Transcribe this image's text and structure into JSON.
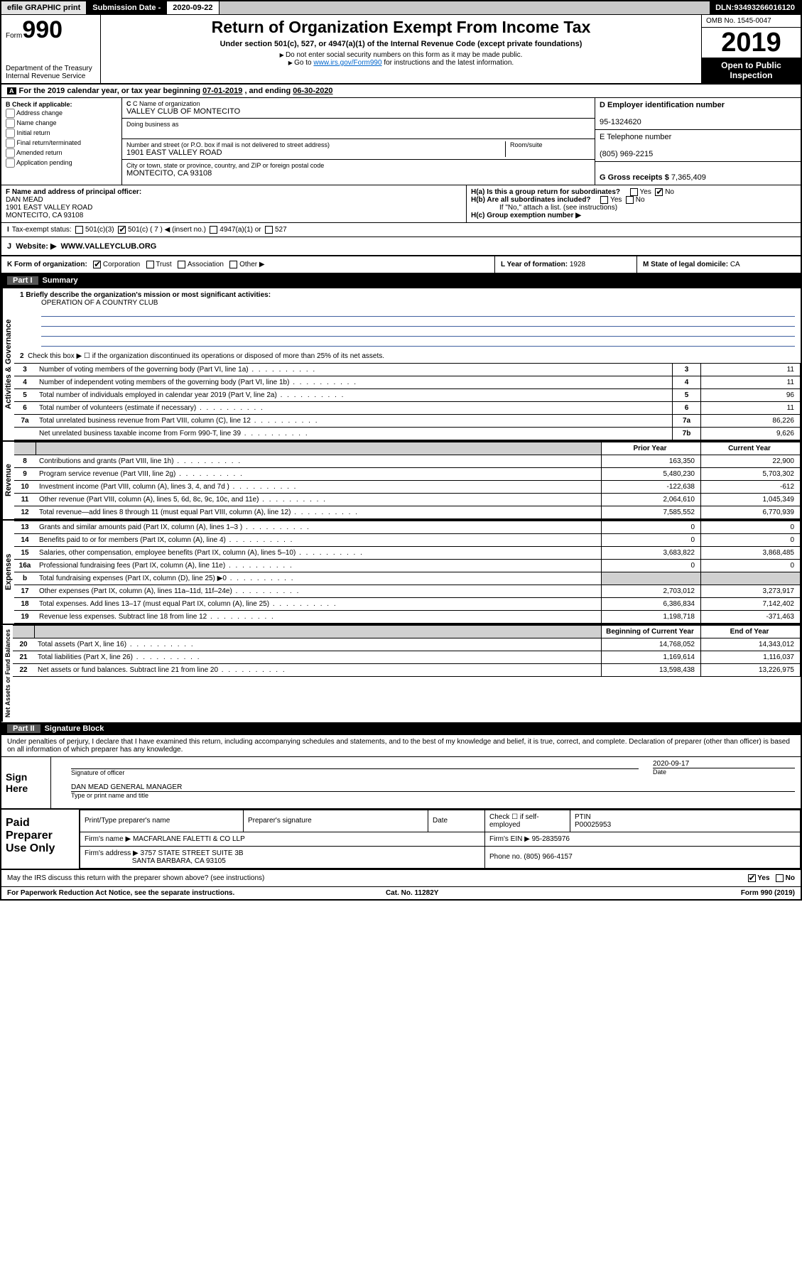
{
  "topbar": {
    "efile": "efile GRAPHIC print",
    "submission_label": "Submission Date - ",
    "submission_date": "2020-09-22",
    "dln_label": "DLN: ",
    "dln": "93493266016120"
  },
  "header": {
    "form_word": "Form",
    "form_num": "990",
    "dept": "Department of the Treasury\nInternal Revenue Service",
    "title": "Return of Organization Exempt From Income Tax",
    "subtitle": "Under section 501(c), 527, or 4947(a)(1) of the Internal Revenue Code (except private foundations)",
    "instr1": "Do not enter social security numbers on this form as it may be made public.",
    "instr2_pre": "Go to ",
    "instr2_link": "www.irs.gov/Form990",
    "instr2_post": " for instructions and the latest information.",
    "omb": "OMB No. 1545-0047",
    "year": "2019",
    "open_pub": "Open to Public Inspection"
  },
  "period": {
    "text_a": "For the 2019 calendar year, or tax year beginning ",
    "begin": "07-01-2019",
    "mid": " , and ending ",
    "end": "06-30-2020"
  },
  "ident": {
    "b_label": "B Check if applicable:",
    "b_opts": [
      "Address change",
      "Name change",
      "Initial return",
      "Final return/terminated",
      "Amended return",
      "Application pending"
    ],
    "c_label": "C Name of organization",
    "c_name": "VALLEY CLUB OF MONTECITO",
    "dba_label": "Doing business as",
    "addr_hint": "Number and street (or P.O. box if mail is not delivered to street address)",
    "room_hint": "Room/suite",
    "addr": "1901 EAST VALLEY ROAD",
    "city_hint": "City or town, state or province, country, and ZIP or foreign postal code",
    "city": "MONTECITO, CA  93108",
    "d_label": "D Employer identification number",
    "d_val": "95-1324620",
    "e_label": "E Telephone number",
    "e_val": "(805) 969-2215",
    "g_label": "G Gross receipts $ ",
    "g_val": "7,365,409"
  },
  "f": {
    "label": "F Name and address of principal officer:",
    "name": "DAN MEAD",
    "addr1": "1901 EAST VALLEY ROAD",
    "addr2": "MONTECITO, CA  93108"
  },
  "h": {
    "a": "H(a)  Is this a group return for subordinates?",
    "b": "H(b)  Are all subordinates included?",
    "b_note": "If \"No,\" attach a list. (see instructions)",
    "c": "H(c)  Group exemption number ▶",
    "yes": "Yes",
    "no": "No"
  },
  "i": {
    "label": "Tax-exempt status:",
    "o1": "501(c)(3)",
    "o2": "501(c) ( 7 ) ◀ (insert no.)",
    "o3": "4947(a)(1) or",
    "o4": "527"
  },
  "j": {
    "label": "Website: ▶",
    "val": "WWW.VALLEYCLUB.ORG"
  },
  "k": {
    "label": "K Form of organization:",
    "opts": [
      "Corporation",
      "Trust",
      "Association",
      "Other ▶"
    ]
  },
  "l": {
    "label": "L Year of formation: ",
    "val": "1928"
  },
  "m": {
    "label": "M State of legal domicile: ",
    "val": "CA"
  },
  "part1": {
    "no": "Part I",
    "title": "Summary"
  },
  "mission": {
    "q": "1  Briefly describe the organization's mission or most significant activities:",
    "a": "OPERATION OF A COUNTRY CLUB"
  },
  "gov": {
    "side": "Activities & Governance",
    "l2": "Check this box ▶ ☐  if the organization discontinued its operations or disposed of more than 25% of its net assets.",
    "rows": [
      {
        "n": "3",
        "d": "Number of voting members of the governing body (Part VI, line 1a)",
        "b": "3",
        "v": "11"
      },
      {
        "n": "4",
        "d": "Number of independent voting members of the governing body (Part VI, line 1b)",
        "b": "4",
        "v": "11"
      },
      {
        "n": "5",
        "d": "Total number of individuals employed in calendar year 2019 (Part V, line 2a)",
        "b": "5",
        "v": "96"
      },
      {
        "n": "6",
        "d": "Total number of volunteers (estimate if necessary)",
        "b": "6",
        "v": "11"
      },
      {
        "n": "7a",
        "d": "Total unrelated business revenue from Part VIII, column (C), line 12",
        "b": "7a",
        "v": "86,226"
      },
      {
        "n": "",
        "d": "Net unrelated business taxable income from Form 990-T, line 39",
        "b": "7b",
        "v": "9,626"
      }
    ]
  },
  "rev": {
    "side": "Revenue",
    "hdr_prior": "Prior Year",
    "hdr_curr": "Current Year",
    "rows": [
      {
        "n": "8",
        "d": "Contributions and grants (Part VIII, line 1h)",
        "p": "163,350",
        "c": "22,900"
      },
      {
        "n": "9",
        "d": "Program service revenue (Part VIII, line 2g)",
        "p": "5,480,230",
        "c": "5,703,302"
      },
      {
        "n": "10",
        "d": "Investment income (Part VIII, column (A), lines 3, 4, and 7d )",
        "p": "-122,638",
        "c": "-612"
      },
      {
        "n": "11",
        "d": "Other revenue (Part VIII, column (A), lines 5, 6d, 8c, 9c, 10c, and 11e)",
        "p": "2,064,610",
        "c": "1,045,349"
      },
      {
        "n": "12",
        "d": "Total revenue—add lines 8 through 11 (must equal Part VIII, column (A), line 12)",
        "p": "7,585,552",
        "c": "6,770,939"
      }
    ]
  },
  "exp": {
    "side": "Expenses",
    "rows": [
      {
        "n": "13",
        "d": "Grants and similar amounts paid (Part IX, column (A), lines 1–3 )",
        "p": "0",
        "c": "0"
      },
      {
        "n": "14",
        "d": "Benefits paid to or for members (Part IX, column (A), line 4)",
        "p": "0",
        "c": "0"
      },
      {
        "n": "15",
        "d": "Salaries, other compensation, employee benefits (Part IX, column (A), lines 5–10)",
        "p": "3,683,822",
        "c": "3,868,485"
      },
      {
        "n": "16a",
        "d": "Professional fundraising fees (Part IX, column (A), line 11e)",
        "p": "0",
        "c": "0"
      },
      {
        "n": "b",
        "d": "Total fundraising expenses (Part IX, column (D), line 25) ▶0",
        "p": "",
        "c": "",
        "shaded": true
      },
      {
        "n": "17",
        "d": "Other expenses (Part IX, column (A), lines 11a–11d, 11f–24e)",
        "p": "2,703,012",
        "c": "3,273,917"
      },
      {
        "n": "18",
        "d": "Total expenses. Add lines 13–17 (must equal Part IX, column (A), line 25)",
        "p": "6,386,834",
        "c": "7,142,402"
      },
      {
        "n": "19",
        "d": "Revenue less expenses. Subtract line 18 from line 12",
        "p": "1,198,718",
        "c": "-371,463"
      }
    ]
  },
  "net": {
    "side": "Net Assets or Fund Balances",
    "hdr_begin": "Beginning of Current Year",
    "hdr_end": "End of Year",
    "rows": [
      {
        "n": "20",
        "d": "Total assets (Part X, line 16)",
        "p": "14,768,052",
        "c": "14,343,012"
      },
      {
        "n": "21",
        "d": "Total liabilities (Part X, line 26)",
        "p": "1,169,614",
        "c": "1,116,037"
      },
      {
        "n": "22",
        "d": "Net assets or fund balances. Subtract line 21 from line 20",
        "p": "13,598,438",
        "c": "13,226,975"
      }
    ]
  },
  "part2": {
    "no": "Part II",
    "title": "Signature Block"
  },
  "perjury": "Under penalties of perjury, I declare that I have examined this return, including accompanying schedules and statements, and to the best of my knowledge and belief, it is true, correct, and complete. Declaration of preparer (other than officer) is based on all information of which preparer has any knowledge.",
  "sign": {
    "here": "Sign Here",
    "sig_officer": "Signature of officer",
    "date_label": "Date",
    "date_val": "2020-09-17",
    "name": "DAN MEAD GENERAL MANAGER",
    "name_label": "Type or print name and title"
  },
  "paid": {
    "label": "Paid Preparer Use Only",
    "h1": "Print/Type preparer's name",
    "h2": "Preparer's signature",
    "h3": "Date",
    "h4_a": "Check ☐ if self-employed",
    "h5": "PTIN",
    "ptin": "P00025953",
    "firm_name_l": "Firm's name    ▶",
    "firm_name": "MACFARLANE FALETTI & CO LLP",
    "firm_ein_l": "Firm's EIN ▶ ",
    "firm_ein": "95-2835976",
    "firm_addr_l": "Firm's address ▶",
    "firm_addr1": "3757 STATE STREET SUITE 3B",
    "firm_addr2": "SANTA BARBARA, CA  93105",
    "phone_l": "Phone no. ",
    "phone": "(805) 966-4157"
  },
  "discuss": {
    "q": "May the IRS discuss this return with the preparer shown above? (see instructions)",
    "yes": "Yes",
    "no": "No"
  },
  "footer": {
    "l": "For Paperwork Reduction Act Notice, see the separate instructions.",
    "m": "Cat. No. 11282Y",
    "r": "Form 990 (2019)"
  },
  "colors": {
    "link": "#0066cc",
    "mission_line": "#4060a0"
  }
}
